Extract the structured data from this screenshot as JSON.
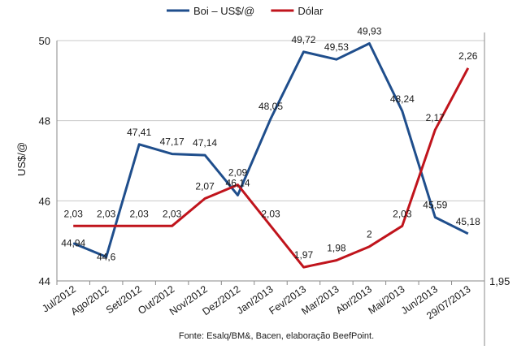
{
  "chart_data": {
    "type": "line",
    "categories": [
      "Jul/2012",
      "Ago/2012",
      "Set/2012",
      "Out/2012",
      "Nov/2012",
      "Dez/2012",
      "Jan/2013",
      "Fev/2013",
      "Mar/2013",
      "Abr/2013",
      "Mai/2013",
      "Jun/2013",
      "29/07/2013"
    ],
    "series": [
      {
        "name": "Boi – US$/@",
        "axis": "left",
        "color": "#1f4e8c",
        "values": [
          44.94,
          44.6,
          47.41,
          47.17,
          47.14,
          46.14,
          48.05,
          49.72,
          49.53,
          49.93,
          48.24,
          45.59,
          45.18
        ],
        "labels": [
          "44,94",
          "44,6",
          "47,41",
          "47,17",
          "47,14",
          "46,14",
          "48,05",
          "49,72",
          "49,53",
          "49,93",
          "48,24",
          "45,59",
          "45,18"
        ]
      },
      {
        "name": "Dólar",
        "axis": "right",
        "color": "#c0141c",
        "values": [
          2.03,
          2.03,
          2.03,
          2.03,
          2.07,
          2.09,
          2.03,
          1.97,
          1.98,
          2.0,
          2.03,
          2.17,
          2.26
        ],
        "labels": [
          "2,03",
          "2,03",
          "2,03",
          "2,03",
          "2,07",
          "2,09",
          "2,03",
          "1,97",
          "1,98",
          "2",
          "2,03",
          "2,17",
          "2,26"
        ]
      }
    ],
    "ylabel": "US$/@",
    "ylim": [
      44,
      50
    ],
    "yticks": [
      "44",
      "46",
      "48",
      "50"
    ],
    "y2lim": [
      1.95,
      2.3
    ],
    "y2ticks": [
      "1,95"
    ],
    "grid": true,
    "legend": "top",
    "source": "Fonte: Esalq/BM&, Bacen, elaboração BeefPoint."
  }
}
